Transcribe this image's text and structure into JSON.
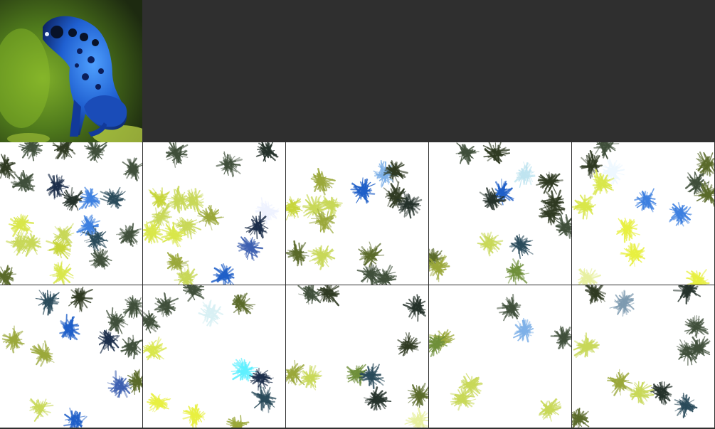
{
  "reference_image": {
    "subject": "blue-poison-dart-frog",
    "colors": {
      "frog_dark": "#0b1e5a",
      "frog_mid": "#1f5fd0",
      "frog_light": "#4fa0ff",
      "bg_dark": "#2a3d12",
      "bg_green": "#7fae2a",
      "bg_yellow": "#c8e04a"
    }
  },
  "palette": [
    "#d9e74a",
    "#c7d63a",
    "#9aa83a",
    "#5a6a2a",
    "#2f3a22",
    "#24312a",
    "#3f4f3a",
    "#1f5fc8",
    "#3c7fe0",
    "#7db0e8",
    "#bfe4f0",
    "#294a5a",
    "#6f8f3a",
    "#c8d858",
    "#1c2e4a"
  ],
  "tiles": [
    {
      "blobs": [
        [
          8,
          235,
          "#2f3a22"
        ],
        [
          45,
          208,
          "#3f4f3a"
        ],
        [
          90,
          208,
          "#2f3a22"
        ],
        [
          135,
          212,
          "#3f4f3a"
        ],
        [
          188,
          238,
          "#3f4f3a"
        ],
        [
          35,
          258,
          "#3f4f3a"
        ],
        [
          80,
          262,
          "#1c2e4a"
        ],
        [
          103,
          282,
          "#24312a"
        ],
        [
          127,
          280,
          "#3c7fe0"
        ],
        [
          160,
          280,
          "#294a5a"
        ],
        [
          30,
          316,
          "#d9e74a"
        ],
        [
          90,
          330,
          "#c8d858"
        ],
        [
          125,
          318,
          "#3c7fe0"
        ],
        [
          135,
          336,
          "#294a5a"
        ],
        [
          182,
          330,
          "#3f4f3a"
        ],
        [
          28,
          342,
          "#c8d858"
        ],
        [
          43,
          342,
          "#c8d858"
        ],
        [
          85,
          348,
          "#c7d63a"
        ],
        [
          142,
          366,
          "#3f4f3a"
        ],
        [
          8,
          388,
          "#5a6a2a"
        ],
        [
          86,
          384,
          "#d9e74a"
        ]
      ]
    },
    {
      "blobs": [
        [
          248,
          216,
          "#3f4f3a"
        ],
        [
          375,
          212,
          "#24312a"
        ],
        [
          322,
          232,
          "#3f4f3a"
        ],
        [
          225,
          278,
          "#c7d63a"
        ],
        [
          252,
          282,
          "#c8d858"
        ],
        [
          272,
          282,
          "#c8d858"
        ],
        [
          226,
          305,
          "#c8d858"
        ],
        [
          296,
          305,
          "#9aa83a"
        ],
        [
          375,
          298,
          "#eef2ff"
        ],
        [
          263,
          318,
          "#c8d858"
        ],
        [
          245,
          330,
          "#d9e74a"
        ],
        [
          213,
          326,
          "#d9e74a"
        ],
        [
          362,
          318,
          "#1c2e4a"
        ],
        [
          350,
          348,
          "#3c5fb0"
        ],
        [
          248,
          368,
          "#9aa83a"
        ],
        [
          315,
          388,
          "#1f5fc8"
        ],
        [
          262,
          390,
          "#c8d858"
        ]
      ]
    },
    {
      "blobs": [
        [
          452,
          255,
          "#9aa83a"
        ],
        [
          540,
          244,
          "#7db0e8"
        ],
        [
          555,
          240,
          "#2f3a22"
        ],
        [
          510,
          268,
          "#1f5fc8"
        ],
        [
          555,
          275,
          "#2f3a22"
        ],
        [
          575,
          288,
          "#24312a"
        ],
        [
          410,
          292,
          "#c7d63a"
        ],
        [
          442,
          292,
          "#c8d858"
        ],
        [
          464,
          288,
          "#c8d858"
        ],
        [
          455,
          312,
          "#9aa83a"
        ],
        [
          418,
          356,
          "#5a6a2a"
        ],
        [
          452,
          360,
          "#c8d858"
        ],
        [
          520,
          358,
          "#5a6a2a"
        ],
        [
          522,
          386,
          "#3f4f3a"
        ],
        [
          540,
          390,
          "#3f4f3a"
        ]
      ]
    },
    {
      "blobs": [
        [
          655,
          215,
          "#3f4f3a"
        ],
        [
          697,
          215,
          "#2f3a22"
        ],
        [
          738,
          245,
          "#bfe4f0"
        ],
        [
          772,
          255,
          "#2f3a22"
        ],
        [
          706,
          270,
          "#1f5fc8"
        ],
        [
          692,
          280,
          "#24312a"
        ],
        [
          778,
          285,
          "#2f3a22"
        ],
        [
          775,
          300,
          "#2f3a22"
        ],
        [
          795,
          320,
          "#3f4f3a"
        ],
        [
          688,
          342,
          "#c8d858"
        ],
        [
          733,
          345,
          "#294a5a"
        ],
        [
          608,
          362,
          "#5a6a2a"
        ],
        [
          615,
          376,
          "#9aa83a"
        ],
        [
          726,
          382,
          "#6f8f3a"
        ]
      ]
    },
    {
      "blobs": [
        [
          850,
          205,
          "#3f4f3a"
        ],
        [
          832,
          230,
          "#2f3a22"
        ],
        [
          860,
          242,
          "#eef8ff"
        ],
        [
          845,
          258,
          "#d9e74a"
        ],
        [
          992,
          232,
          "#5a6a2a"
        ],
        [
          978,
          258,
          "#3f4f3a"
        ],
        [
          994,
          272,
          "#5a6a2a"
        ],
        [
          908,
          282,
          "#3c7fe0"
        ],
        [
          822,
          290,
          "#d9e74a"
        ],
        [
          957,
          302,
          "#3c7fe0"
        ],
        [
          882,
          322,
          "#e8f040"
        ],
        [
          892,
          356,
          "#e8f040"
        ],
        [
          825,
          392,
          "#e8f0a0"
        ],
        [
          980,
          394,
          "#e8f040"
        ]
      ]
    },
    {
      "blobs": [
        [
          68,
          425,
          "#294a5a"
        ],
        [
          112,
          418,
          "#2f3a22"
        ],
        [
          188,
          432,
          "#3f4f3a"
        ],
        [
          98,
          462,
          "#1f5fc8"
        ],
        [
          162,
          452,
          "#3f4f3a"
        ],
        [
          152,
          478,
          "#1c2e4a"
        ],
        [
          185,
          488,
          "#3f4f3a"
        ],
        [
          20,
          478,
          "#9aa83a"
        ],
        [
          62,
          498,
          "#9aa83a"
        ],
        [
          168,
          542,
          "#3c5fb0"
        ],
        [
          192,
          536,
          "#5a6a2a"
        ],
        [
          55,
          574,
          "#c8d858"
        ],
        [
          107,
          592,
          "#1f5fc8"
        ]
      ]
    },
    {
      "blobs": [
        [
          272,
          408,
          "#3f4f3a"
        ],
        [
          232,
          430,
          "#3f4f3a"
        ],
        [
          338,
          426,
          "#5a6a2a"
        ],
        [
          296,
          440,
          "#d8f0f4"
        ],
        [
          210,
          452,
          "#3f4f3a"
        ],
        [
          215,
          492,
          "#d9e74a"
        ],
        [
          342,
          520,
          "#5ff0ff"
        ],
        [
          366,
          532,
          "#1c2e4a"
        ],
        [
          372,
          560,
          "#294a5a"
        ],
        [
          222,
          567,
          "#e8f040"
        ],
        [
          274,
          585,
          "#e8f040"
        ],
        [
          334,
          598,
          "#9aa83a"
        ]
      ]
    },
    {
      "blobs": [
        [
          436,
          412,
          "#3f4f3a"
        ],
        [
          462,
          412,
          "#2f3a22"
        ],
        [
          586,
          432,
          "#24312a"
        ],
        [
          572,
          485,
          "#2f3a22"
        ],
        [
          412,
          526,
          "#9aa83a"
        ],
        [
          436,
          532,
          "#c8d858"
        ],
        [
          502,
          526,
          "#6f8f3a"
        ],
        [
          522,
          528,
          "#294a5a"
        ],
        [
          530,
          562,
          "#24312a"
        ],
        [
          590,
          556,
          "#5a6a2a"
        ],
        [
          588,
          592,
          "#e8f0a0"
        ]
      ]
    },
    {
      "blobs": [
        [
          718,
          434,
          "#3f4f3a"
        ],
        [
          736,
          464,
          "#7db0e8"
        ],
        [
          792,
          474,
          "#3f4f3a"
        ],
        [
          622,
          478,
          "#9aa83a"
        ],
        [
          612,
          484,
          "#6f8f3a"
        ],
        [
          662,
          542,
          "#c8d858"
        ],
        [
          650,
          560,
          "#c8d858"
        ],
        [
          772,
          576,
          "#c8d858"
        ]
      ]
    },
    {
      "blobs": [
        [
          835,
          412,
          "#2f3a22"
        ],
        [
          876,
          426,
          "#7d9ab0"
        ],
        [
          966,
          408,
          "#24312a"
        ],
        [
          978,
          458,
          "#3f4f3a"
        ],
        [
          982,
          490,
          "#3f4f3a"
        ],
        [
          966,
          494,
          "#3f4f3a"
        ],
        [
          824,
          488,
          "#c8d858"
        ],
        [
          870,
          538,
          "#9aa83a"
        ],
        [
          900,
          552,
          "#c8d858"
        ],
        [
          930,
          552,
          "#24312a"
        ],
        [
          964,
          570,
          "#294a5a"
        ],
        [
          812,
          588,
          "#5a6a2a"
        ]
      ]
    }
  ]
}
